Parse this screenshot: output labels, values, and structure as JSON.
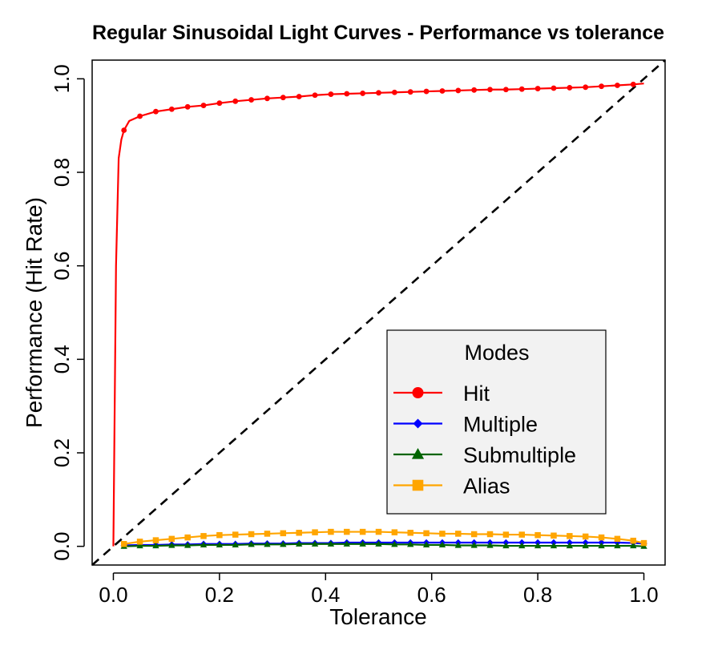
{
  "chart_data": {
    "type": "line",
    "title": "Regular Sinusoidal Light Curves - Performance vs tolerance",
    "xlabel": "Tolerance",
    "ylabel": "Performance (Hit Rate)",
    "xlim": [
      -0.04,
      1.04
    ],
    "ylim": [
      -0.04,
      1.04
    ],
    "xticks": [
      0.0,
      0.2,
      0.4,
      0.6,
      0.8,
      1.0
    ],
    "xtick_labels": [
      "0.0",
      "0.2",
      "0.4",
      "0.6",
      "0.8",
      "1.0"
    ],
    "yticks": [
      0.0,
      0.2,
      0.4,
      0.6,
      0.8,
      1.0
    ],
    "ytick_labels": [
      "0.0",
      "0.2",
      "0.4",
      "0.6",
      "0.8",
      "1.0"
    ],
    "reference_line": {
      "label": "diagonal",
      "style": "dashed",
      "color": "#000000",
      "x": [
        -0.04,
        1.04
      ],
      "y": [
        -0.04,
        1.04
      ]
    },
    "legend": {
      "title": "Modes",
      "position": "center-right"
    },
    "series": [
      {
        "name": "Hit",
        "color": "#ff0000",
        "marker": "circle",
        "x": [
          0.0,
          0.005,
          0.01,
          0.015,
          0.02,
          0.03,
          0.05,
          0.08,
          0.11,
          0.14,
          0.17,
          0.2,
          0.23,
          0.26,
          0.29,
          0.32,
          0.35,
          0.38,
          0.41,
          0.44,
          0.47,
          0.5,
          0.53,
          0.56,
          0.59,
          0.62,
          0.65,
          0.68,
          0.71,
          0.74,
          0.77,
          0.8,
          0.83,
          0.86,
          0.89,
          0.92,
          0.95,
          0.98,
          1.0
        ],
        "y": [
          0.0,
          0.6,
          0.83,
          0.87,
          0.89,
          0.91,
          0.92,
          0.93,
          0.935,
          0.94,
          0.943,
          0.948,
          0.952,
          0.955,
          0.958,
          0.96,
          0.962,
          0.965,
          0.967,
          0.968,
          0.969,
          0.97,
          0.971,
          0.972,
          0.973,
          0.974,
          0.975,
          0.976,
          0.977,
          0.977,
          0.978,
          0.979,
          0.98,
          0.981,
          0.982,
          0.984,
          0.986,
          0.988,
          0.99
        ],
        "marker_x": [
          0.02,
          0.05,
          0.08,
          0.11,
          0.14,
          0.17,
          0.2,
          0.23,
          0.26,
          0.29,
          0.32,
          0.35,
          0.38,
          0.41,
          0.44,
          0.47,
          0.5,
          0.53,
          0.56,
          0.59,
          0.62,
          0.65,
          0.68,
          0.71,
          0.74,
          0.77,
          0.8,
          0.83,
          0.86,
          0.89,
          0.92,
          0.95,
          0.98
        ]
      },
      {
        "name": "Multiple",
        "color": "#0000ff",
        "marker": "diamond",
        "x": [
          0.02,
          0.05,
          0.08,
          0.11,
          0.14,
          0.17,
          0.2,
          0.23,
          0.26,
          0.29,
          0.32,
          0.35,
          0.38,
          0.41,
          0.44,
          0.47,
          0.5,
          0.53,
          0.56,
          0.59,
          0.62,
          0.65,
          0.68,
          0.71,
          0.74,
          0.77,
          0.8,
          0.83,
          0.86,
          0.89,
          0.92,
          0.95,
          0.98,
          1.0
        ],
        "y": [
          0.002,
          0.003,
          0.003,
          0.004,
          0.004,
          0.005,
          0.005,
          0.005,
          0.006,
          0.006,
          0.006,
          0.007,
          0.007,
          0.007,
          0.008,
          0.008,
          0.008,
          0.008,
          0.008,
          0.008,
          0.008,
          0.008,
          0.008,
          0.008,
          0.008,
          0.008,
          0.008,
          0.008,
          0.008,
          0.008,
          0.008,
          0.008,
          0.007,
          0.006
        ]
      },
      {
        "name": "Submultiple",
        "color": "#006400",
        "marker": "triangle",
        "x": [
          0.02,
          0.05,
          0.08,
          0.11,
          0.14,
          0.17,
          0.2,
          0.23,
          0.26,
          0.29,
          0.32,
          0.35,
          0.38,
          0.41,
          0.44,
          0.47,
          0.5,
          0.53,
          0.56,
          0.59,
          0.62,
          0.65,
          0.68,
          0.71,
          0.74,
          0.77,
          0.8,
          0.83,
          0.86,
          0.89,
          0.92,
          0.95,
          0.98,
          1.0
        ],
        "y": [
          0.0,
          0.001,
          0.001,
          0.002,
          0.002,
          0.003,
          0.003,
          0.003,
          0.004,
          0.004,
          0.004,
          0.005,
          0.005,
          0.005,
          0.005,
          0.005,
          0.005,
          0.004,
          0.004,
          0.003,
          0.003,
          0.002,
          0.002,
          0.002,
          0.001,
          0.001,
          0.001,
          0.001,
          0.001,
          0.001,
          0.001,
          0.001,
          0.001,
          0.0
        ]
      },
      {
        "name": "Alias",
        "color": "#ffa500",
        "marker": "square",
        "x": [
          0.02,
          0.05,
          0.08,
          0.11,
          0.14,
          0.17,
          0.2,
          0.23,
          0.26,
          0.29,
          0.32,
          0.35,
          0.38,
          0.41,
          0.44,
          0.47,
          0.5,
          0.53,
          0.56,
          0.59,
          0.62,
          0.65,
          0.68,
          0.71,
          0.74,
          0.77,
          0.8,
          0.83,
          0.86,
          0.89,
          0.92,
          0.95,
          0.98,
          1.0
        ],
        "y": [
          0.005,
          0.01,
          0.013,
          0.016,
          0.019,
          0.022,
          0.024,
          0.025,
          0.026,
          0.027,
          0.028,
          0.029,
          0.03,
          0.031,
          0.031,
          0.031,
          0.031,
          0.03,
          0.029,
          0.028,
          0.027,
          0.027,
          0.026,
          0.026,
          0.025,
          0.025,
          0.024,
          0.023,
          0.022,
          0.021,
          0.019,
          0.016,
          0.012,
          0.007
        ]
      }
    ]
  }
}
